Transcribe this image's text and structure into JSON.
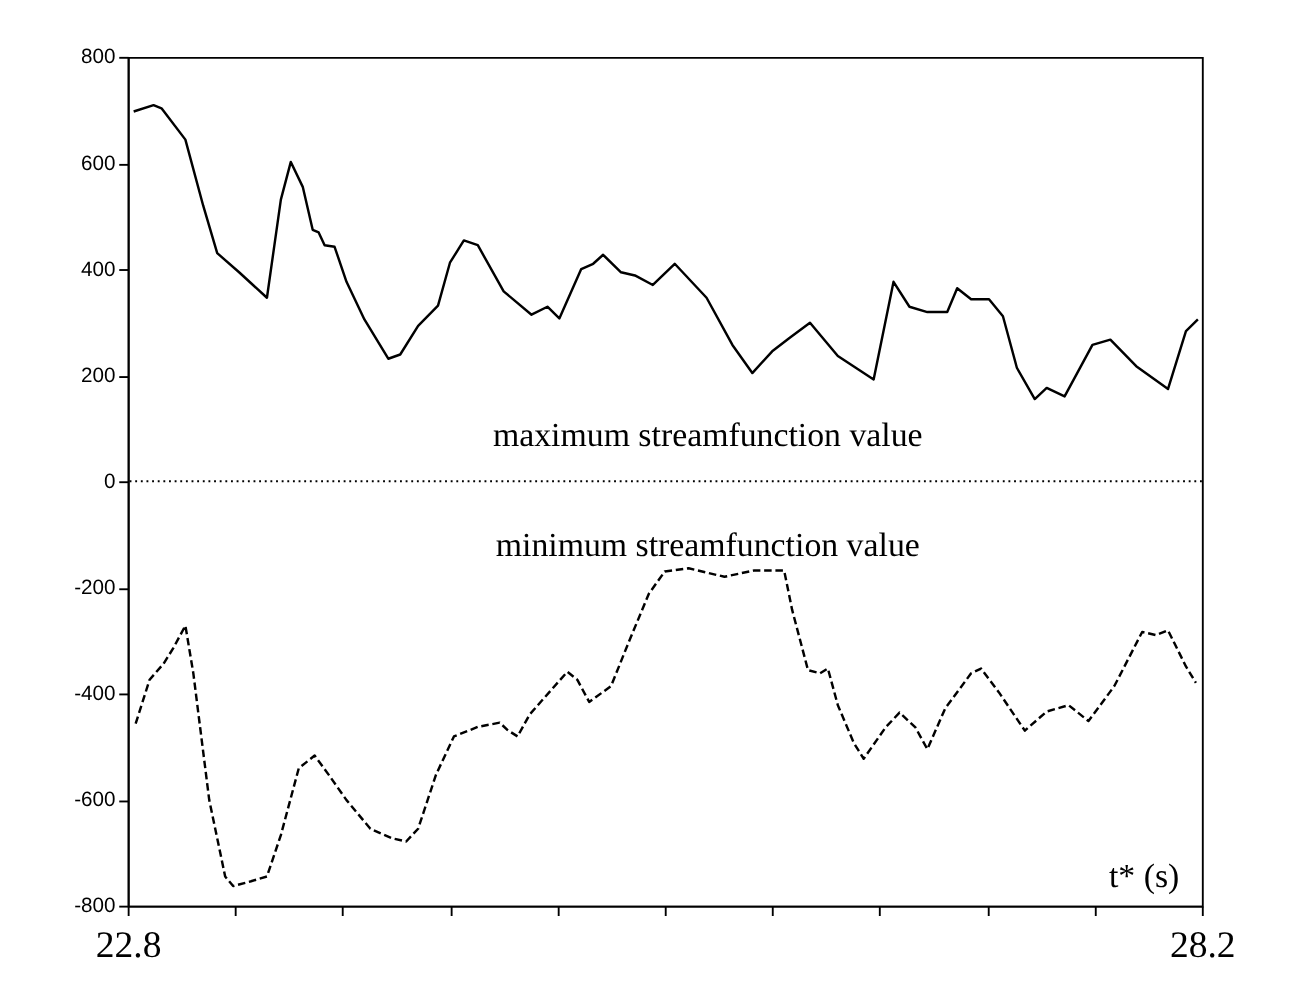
{
  "chart_data": {
    "type": "line",
    "xlabel": "t* (s)",
    "xlim": [
      22.8,
      28.2
    ],
    "xticks": [
      22.8,
      {
        "value": 23.34,
        "label": null
      },
      {
        "value": 23.88,
        "label": null
      },
      {
        "value": 24.42,
        "label": null
      },
      {
        "value": 24.96,
        "label": null
      },
      {
        "value": 25.5,
        "label": null
      },
      {
        "value": 26.04,
        "label": null
      },
      {
        "value": 26.58,
        "label": null
      },
      {
        "value": 27.12,
        "label": null
      },
      {
        "value": 27.66,
        "label": null
      },
      28.2
    ],
    "ylim": [
      -800,
      800
    ],
    "yticks": [
      -800,
      -600,
      -400,
      -200,
      0,
      200,
      400,
      600,
      800
    ],
    "marker": "none",
    "ref_lines": [
      {
        "axis": "y",
        "value": 0,
        "color": "#000000",
        "line_style": "dotted"
      }
    ],
    "series": [
      {
        "name": "maximum streamfunction value",
        "color": "#000000",
        "line_style": "solid",
        "x": [
          22.83,
          22.93,
          22.97,
          23.09,
          23.18,
          23.25,
          23.36,
          23.5,
          23.57,
          23.62,
          23.68,
          23.73,
          23.76,
          23.79,
          23.84,
          23.9,
          23.99,
          24.11,
          24.17,
          24.26,
          24.36,
          24.42,
          24.49,
          24.56,
          24.69,
          24.83,
          24.91,
          24.97,
          25.08,
          25.14,
          25.19,
          25.28,
          25.35,
          25.44,
          25.55,
          25.71,
          25.84,
          25.94,
          26.04,
          26.13,
          26.23,
          26.37,
          26.55,
          26.65,
          26.73,
          26.82,
          26.92,
          26.97,
          27.04,
          27.13,
          27.2,
          27.27,
          27.36,
          27.42,
          27.51,
          27.65,
          27.74,
          27.87,
          28.03,
          28.12,
          28.18
        ],
        "values": [
          697,
          709,
          703,
          644,
          519,
          430,
          394,
          346,
          531,
          602,
          555,
          474,
          469,
          445,
          442,
          376,
          305,
          231,
          239,
          293,
          331,
          412,
          454,
          445,
          358,
          314,
          329,
          307,
          400,
          410,
          427,
          394,
          388,
          370,
          410,
          346,
          257,
          204,
          245,
          271,
          299,
          236,
          192,
          376,
          329,
          319,
          319,
          364,
          343,
          343,
          311,
          214,
          155,
          176,
          160,
          257,
          267,
          217,
          174,
          283,
          305
        ]
      },
      {
        "name": "minimum streamfunction value",
        "color": "#000000",
        "line_style": "dashed",
        "x": [
          22.84,
          22.91,
          22.98,
          23.03,
          23.09,
          23.13,
          23.21,
          23.29,
          23.33,
          23.42,
          23.5,
          23.57,
          23.66,
          23.74,
          23.81,
          23.9,
          24.02,
          24.13,
          24.2,
          24.26,
          24.35,
          24.44,
          24.56,
          24.67,
          24.71,
          24.76,
          24.82,
          24.89,
          25.01,
          25.06,
          25.12,
          25.23,
          25.32,
          25.42,
          25.5,
          25.62,
          25.8,
          25.95,
          26.1,
          26.14,
          26.22,
          26.28,
          26.32,
          26.37,
          26.45,
          26.5,
          26.61,
          26.68,
          26.76,
          26.82,
          26.91,
          27.04,
          27.09,
          27.18,
          27.31,
          27.42,
          27.53,
          27.63,
          27.76,
          27.9,
          27.97,
          28.03,
          28.12,
          28.17
        ],
        "values": [
          -457,
          -374,
          -344,
          -314,
          -272,
          -362,
          -601,
          -745,
          -763,
          -754,
          -745,
          -667,
          -541,
          -517,
          -553,
          -601,
          -655,
          -673,
          -679,
          -655,
          -553,
          -481,
          -463,
          -455,
          -469,
          -481,
          -440,
          -410,
          -359,
          -374,
          -416,
          -386,
          -302,
          -212,
          -170,
          -164,
          -180,
          -168,
          -168,
          -242,
          -356,
          -362,
          -353,
          -422,
          -493,
          -523,
          -464,
          -436,
          -464,
          -505,
          -428,
          -362,
          -353,
          -398,
          -470,
          -434,
          -422,
          -452,
          -386,
          -284,
          -290,
          -281,
          -349,
          -380
        ]
      }
    ]
  }
}
